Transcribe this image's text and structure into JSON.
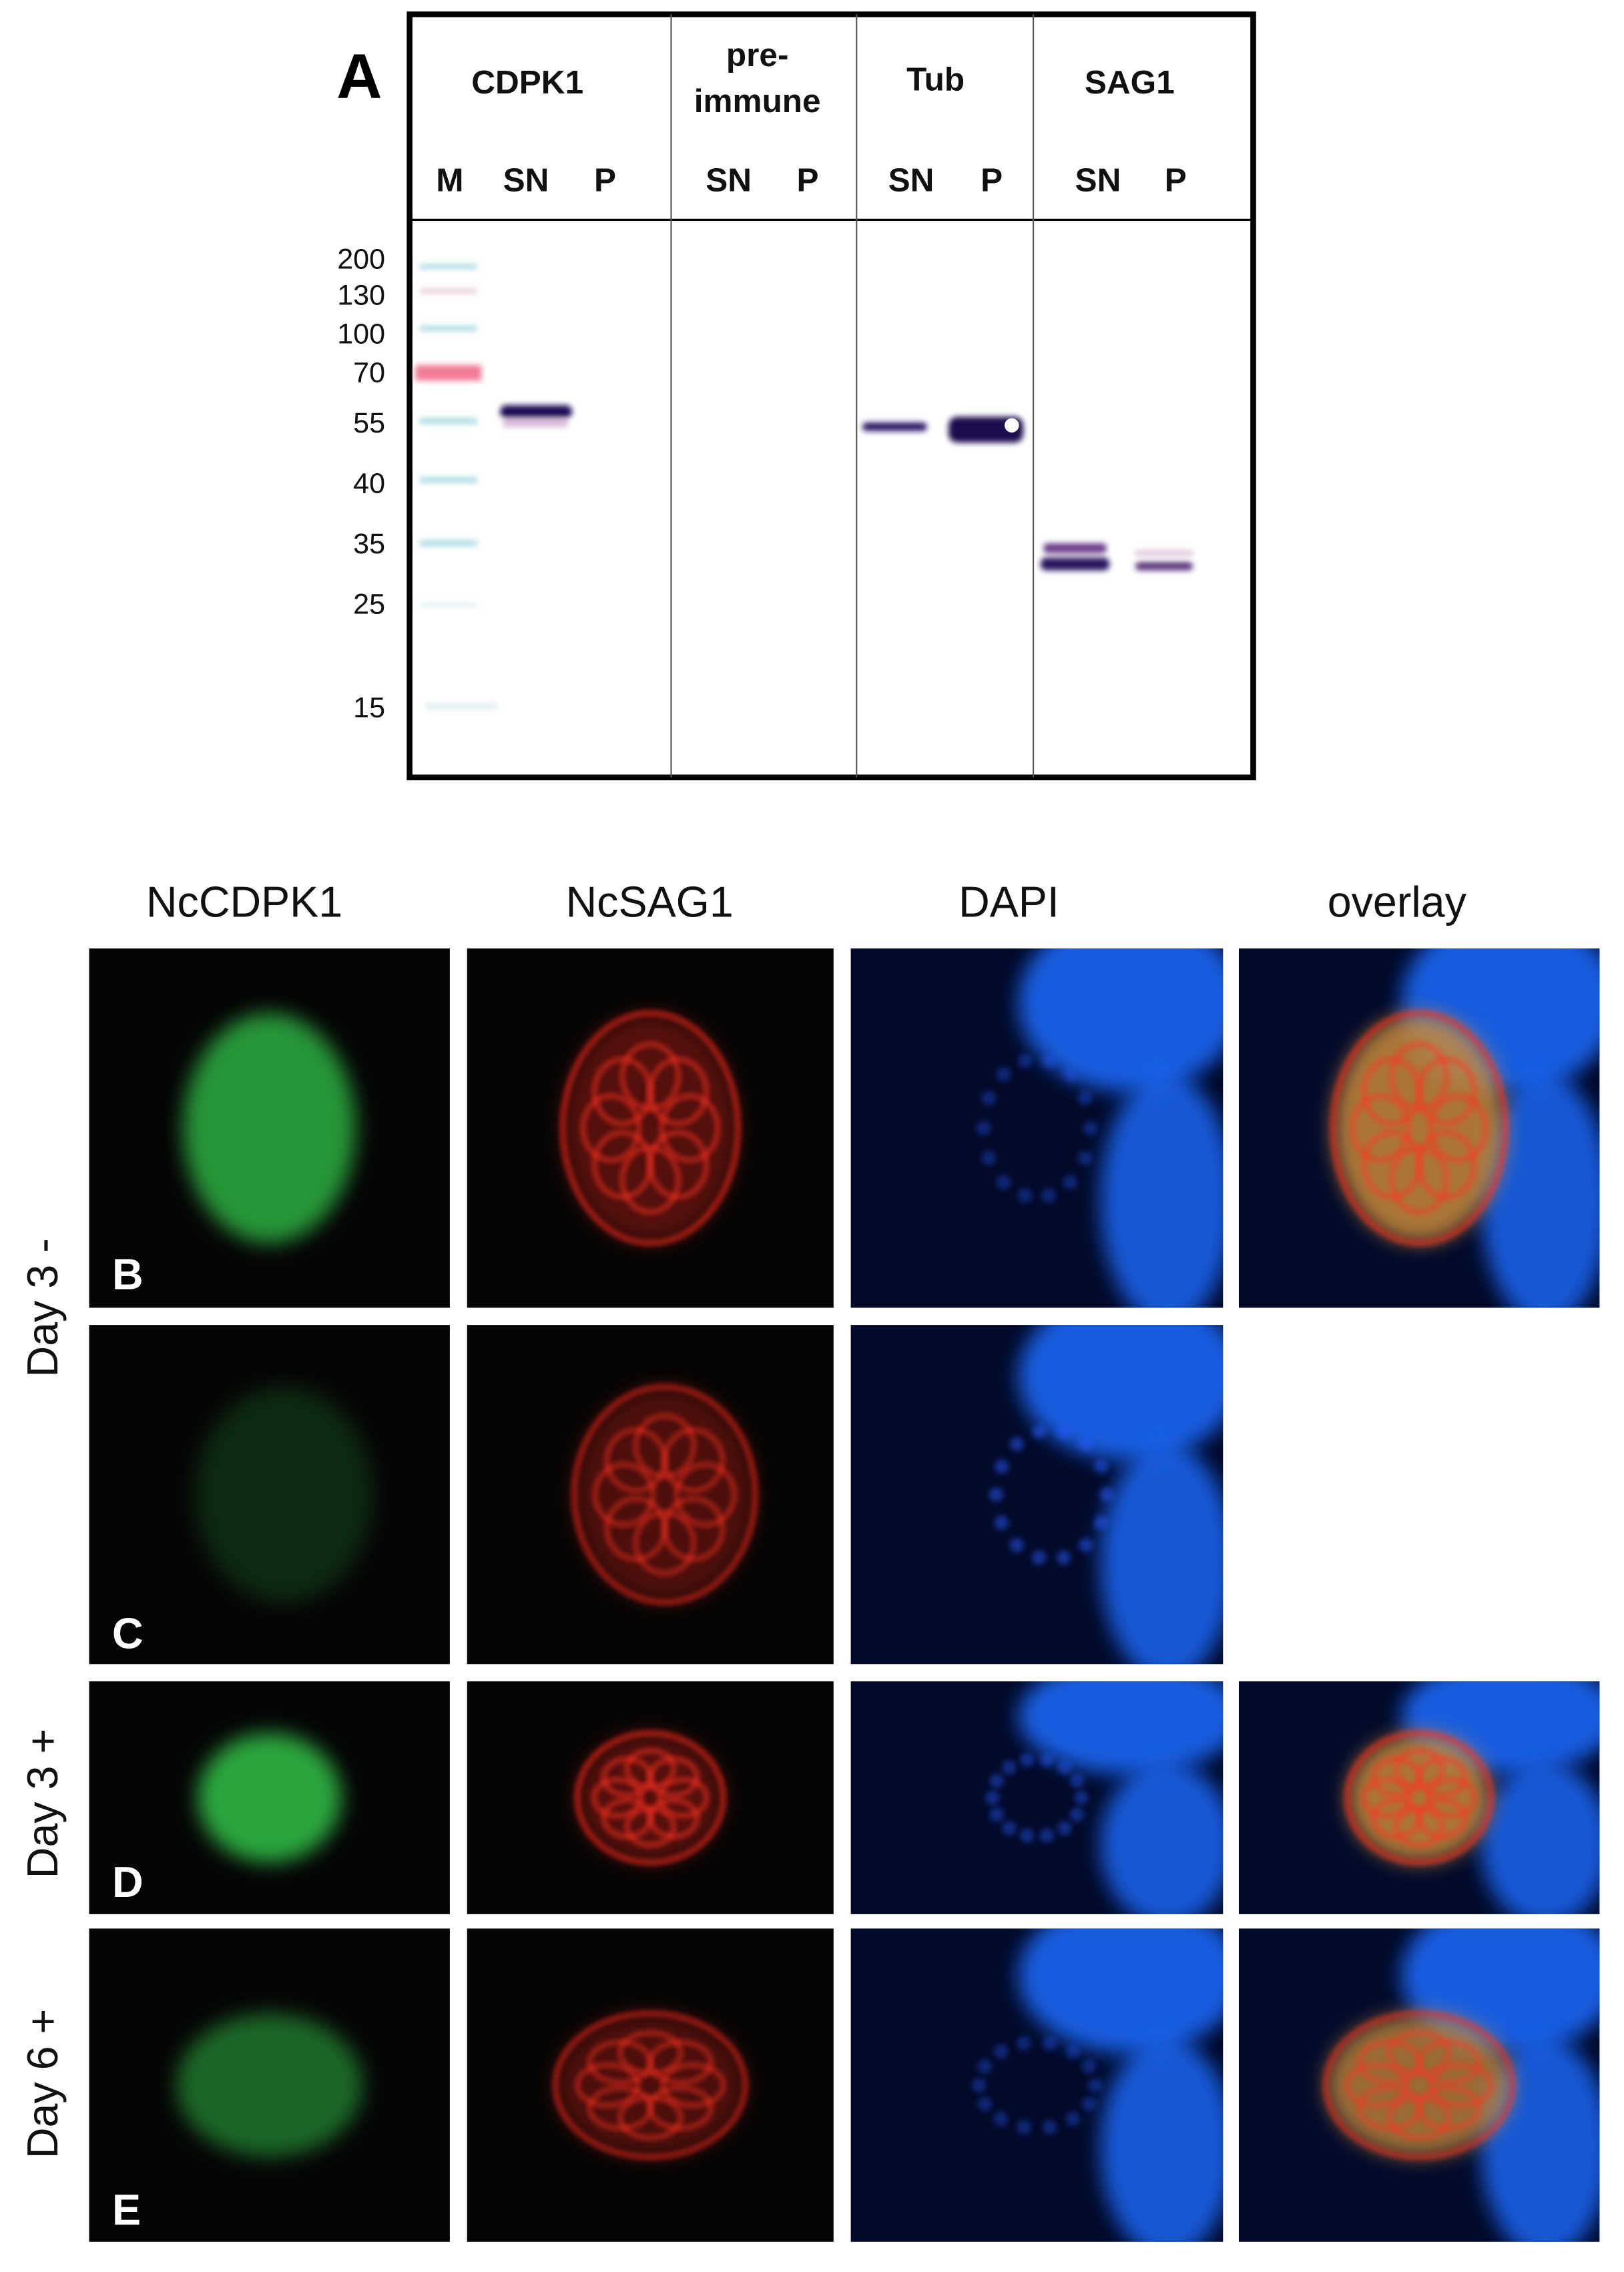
{
  "panel_a": {
    "label": "A",
    "groups": [
      {
        "title_lines": [
          "CDPK1"
        ],
        "lanes": [
          "M",
          "SN",
          "P"
        ]
      },
      {
        "title_lines": [
          "pre-",
          "immune"
        ],
        "lanes": [
          "SN",
          "P"
        ]
      },
      {
        "title_lines": [
          "Tub"
        ],
        "lanes": [
          "SN",
          "P"
        ]
      },
      {
        "title_lines": [
          "SAG1"
        ],
        "lanes": [
          "SN",
          "P"
        ]
      }
    ],
    "markers": [
      "200",
      "130",
      "100",
      "70",
      "55",
      "40",
      "35",
      "25",
      "15"
    ]
  },
  "micrographs": {
    "columns": [
      "NcCDPK1",
      "NcSAG1",
      "DAPI",
      "overlay"
    ],
    "row_groups": [
      "Day 3 -",
      "Day 3 +",
      "Day 6 +"
    ],
    "panel_labels": [
      "B",
      "C",
      "D",
      "E"
    ]
  }
}
